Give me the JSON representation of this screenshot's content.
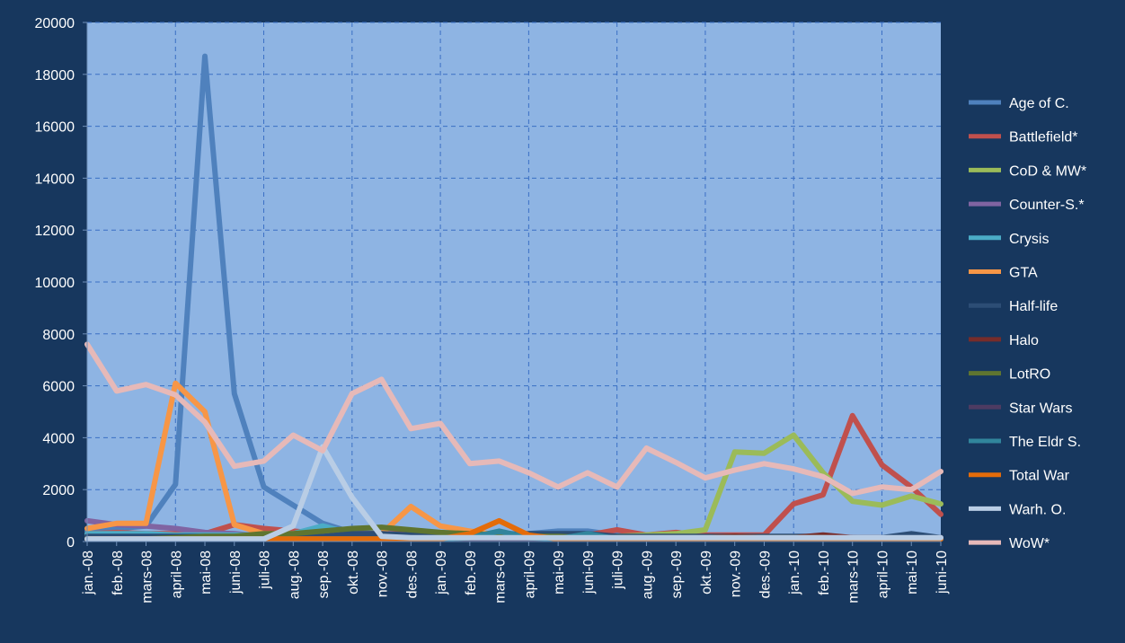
{
  "chart_data": {
    "type": "line",
    "title": "",
    "xlabel": "",
    "ylabel": "",
    "ylim": [
      0,
      20000
    ],
    "yticks": [
      0,
      2000,
      4000,
      6000,
      8000,
      10000,
      12000,
      14000,
      16000,
      18000,
      20000
    ],
    "grid": true,
    "legend_position": "right",
    "categories": [
      "jan.-08",
      "feb.-08",
      "mars-08",
      "april-08",
      "mai-08",
      "juni-08",
      "juli-08",
      "aug.-08",
      "sep.-08",
      "okt.-08",
      "nov.-08",
      "des.-08",
      "jan.-09",
      "feb.-09",
      "mars-09",
      "april-09",
      "mai-09",
      "juni-09",
      "juli-09",
      "aug.-09",
      "sep.-09",
      "okt.-09",
      "nov.-09",
      "des.-09",
      "jan.-10",
      "feb.-10",
      "mars-10",
      "april-10",
      "mai-10",
      "juni-10"
    ],
    "series": [
      {
        "name": "Age of C.",
        "color": "#4f81bd",
        "values": [
          400,
          500,
          600,
          2200,
          18700,
          5700,
          2100,
          1400,
          700,
          350,
          300,
          250,
          250,
          300,
          300,
          300,
          400,
          400,
          250,
          200,
          200,
          200,
          200,
          200,
          150,
          150,
          150,
          100,
          200,
          150
        ]
      },
      {
        "name": "Battlefield*",
        "color": "#c0504d",
        "values": [
          300,
          350,
          300,
          300,
          300,
          650,
          500,
          400,
          300,
          300,
          300,
          300,
          300,
          300,
          200,
          200,
          250,
          250,
          450,
          250,
          350,
          250,
          250,
          250,
          1450,
          1800,
          4850,
          2950,
          2100,
          1050
        ]
      },
      {
        "name": "CoD & MW*",
        "color": "#9bbb59",
        "values": [
          200,
          200,
          200,
          200,
          200,
          200,
          200,
          200,
          200,
          200,
          200,
          200,
          200,
          200,
          200,
          200,
          200,
          200,
          200,
          250,
          300,
          450,
          3450,
          3400,
          4100,
          2650,
          1550,
          1400,
          1750,
          1450
        ]
      },
      {
        "name": "Counter-S.*",
        "color": "#8064a2",
        "values": [
          800,
          650,
          600,
          500,
          350,
          300,
          200,
          200,
          200,
          150,
          150,
          150,
          150,
          150,
          150,
          150,
          150,
          150,
          150,
          150,
          150,
          150,
          150,
          150,
          150,
          150,
          150,
          150,
          150,
          150
        ]
      },
      {
        "name": "Crysis",
        "color": "#4bacc6",
        "values": [
          300,
          300,
          300,
          250,
          250,
          250,
          250,
          300,
          600,
          300,
          150,
          150,
          150,
          150,
          150,
          150,
          150,
          150,
          150,
          100,
          100,
          100,
          100,
          100,
          100,
          100,
          100,
          100,
          100,
          100
        ]
      },
      {
        "name": "GTA",
        "color": "#f79646",
        "values": [
          500,
          700,
          700,
          6100,
          5000,
          650,
          300,
          300,
          250,
          250,
          300,
          1350,
          600,
          400,
          250,
          200,
          150,
          150,
          150,
          150,
          150,
          150,
          150,
          150,
          150,
          150,
          150,
          150,
          150,
          150
        ]
      },
      {
        "name": "Half-life",
        "color": "#2c4d75",
        "values": [
          200,
          200,
          200,
          200,
          200,
          200,
          200,
          200,
          200,
          300,
          300,
          250,
          300,
          300,
          250,
          300,
          300,
          300,
          200,
          200,
          200,
          200,
          200,
          200,
          200,
          200,
          150,
          150,
          300,
          150
        ]
      },
      {
        "name": "Halo",
        "color": "#772c2a",
        "values": [
          100,
          100,
          100,
          100,
          100,
          100,
          100,
          100,
          100,
          100,
          100,
          100,
          100,
          100,
          100,
          100,
          100,
          100,
          100,
          100,
          100,
          150,
          200,
          150,
          150,
          250,
          150,
          100,
          100,
          100
        ]
      },
      {
        "name": "LotRO",
        "color": "#5f7530",
        "values": [
          100,
          100,
          100,
          150,
          200,
          200,
          300,
          300,
          400,
          500,
          550,
          450,
          350,
          300,
          250,
          200,
          200,
          150,
          150,
          150,
          150,
          150,
          150,
          150,
          150,
          150,
          100,
          100,
          100,
          100
        ]
      },
      {
        "name": "Star Wars",
        "color": "#4d3b62",
        "values": [
          100,
          100,
          100,
          100,
          100,
          100,
          100,
          100,
          100,
          100,
          100,
          100,
          100,
          100,
          100,
          100,
          100,
          100,
          100,
          100,
          100,
          100,
          100,
          100,
          100,
          100,
          100,
          100,
          100,
          100
        ]
      },
      {
        "name": "The Eldr S.",
        "color": "#31859c",
        "values": [
          100,
          100,
          100,
          100,
          100,
          100,
          100,
          100,
          100,
          100,
          100,
          100,
          100,
          150,
          400,
          150,
          100,
          300,
          100,
          100,
          100,
          100,
          100,
          100,
          100,
          100,
          100,
          100,
          100,
          100
        ]
      },
      {
        "name": "Total War",
        "color": "#e46c0a",
        "values": [
          100,
          100,
          100,
          100,
          100,
          100,
          100,
          100,
          100,
          100,
          100,
          100,
          100,
          300,
          800,
          250,
          100,
          100,
          100,
          100,
          100,
          100,
          100,
          100,
          100,
          100,
          100,
          100,
          100,
          100
        ]
      },
      {
        "name": "Warh. O.",
        "color": "#b9cde5",
        "values": [
          100,
          100,
          100,
          100,
          100,
          100,
          100,
          600,
          3650,
          1700,
          200,
          150,
          150,
          150,
          150,
          150,
          150,
          150,
          150,
          150,
          150,
          150,
          150,
          150,
          150,
          150,
          150,
          150,
          150,
          150
        ]
      },
      {
        "name": "WoW*",
        "color": "#e6b9b8",
        "values": [
          7600,
          5800,
          6050,
          5650,
          4600,
          2900,
          3100,
          4100,
          3500,
          5700,
          6250,
          4350,
          4550,
          3000,
          3100,
          2650,
          2100,
          2650,
          2100,
          3600,
          3050,
          2450,
          2750,
          3000,
          2800,
          2500,
          1850,
          2100,
          2000,
          2700
        ]
      }
    ]
  }
}
